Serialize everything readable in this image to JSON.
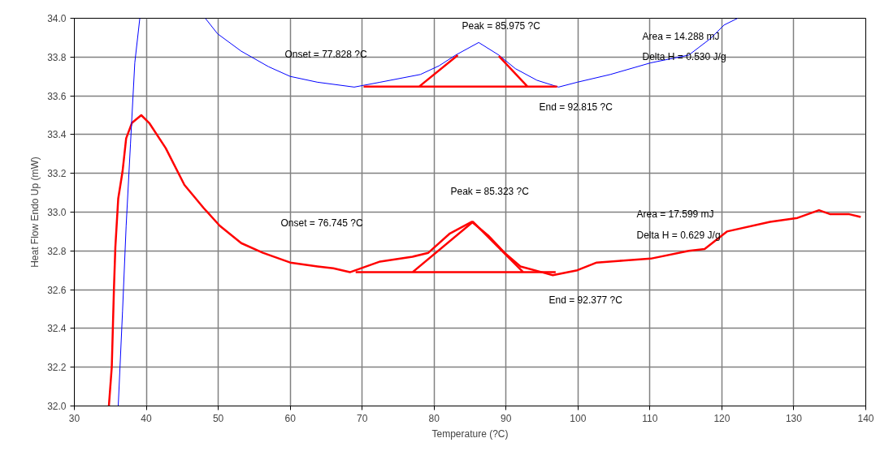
{
  "chart_data": {
    "type": "line",
    "xlabel": "Temperature (?C)",
    "ylabel": "Heat Flow Endo Up (mW)",
    "xlim": [
      30,
      140
    ],
    "ylim": [
      32.0,
      34.0
    ],
    "xticks": [
      30,
      40,
      50,
      60,
      70,
      80,
      90,
      100,
      110,
      120,
      130,
      140
    ],
    "yticks": [
      {
        "value": 32.0,
        "label": "32.0"
      },
      32.2,
      32.4,
      32.6,
      32.8,
      {
        "value": 33.0,
        "label": "33.0"
      },
      33.2,
      33.4,
      33.6,
      33.8,
      {
        "value": 34.0,
        "label": "34.0"
      }
    ],
    "grid": true,
    "marker": "none",
    "line_style": "solid",
    "series": [
      {
        "color": "#ff0000",
        "x": [
          34.8,
          35.2,
          35.5,
          35.7,
          36.1,
          36.7,
          37.2,
          38.0,
          39.3,
          40.4,
          42.7,
          45.3,
          48.0,
          50.2,
          53.2,
          56.2,
          60.0,
          63.8,
          66.0,
          68.3,
          72.5,
          77.0,
          79.2,
          82.2,
          85.25,
          87.5,
          89.8,
          92.0,
          95.0,
          96.5,
          99.9,
          102.6,
          106.3,
          110.1,
          115.4,
          117.6,
          120.7,
          126.7,
          130.5,
          133.5,
          135.0,
          137.6,
          139.3
        ],
        "values": [
          32.0,
          32.2,
          32.6,
          32.82,
          33.07,
          33.21,
          33.38,
          33.46,
          33.5,
          33.46,
          33.33,
          33.14,
          33.02,
          32.93,
          32.84,
          32.79,
          32.74,
          32.72,
          32.71,
          32.69,
          32.745,
          32.77,
          32.79,
          32.89,
          32.95,
          32.88,
          32.79,
          32.72,
          32.69,
          32.675,
          32.7,
          32.74,
          32.75,
          32.76,
          32.8,
          32.81,
          32.9,
          32.95,
          32.97,
          33.01,
          32.99,
          32.99,
          32.975
        ]
      },
      {
        "color": "#0000ff",
        "x": [
          36.1,
          36.7,
          37.2,
          37.8,
          38.4,
          39.1,
          43.0,
          48.2,
          49.9,
          53.2,
          57.0,
          60.0,
          63.8,
          68.9,
          72.5,
          78.1,
          80.7,
          83.0,
          86.2,
          89.0,
          91.3,
          94.3,
          97.3,
          99.9,
          104.5,
          110.1,
          115.4,
          118.4,
          120.3,
          122.2
        ],
        "values": [
          32.0,
          32.49,
          32.93,
          33.35,
          33.77,
          34.0,
          null,
          34.0,
          33.92,
          33.83,
          33.75,
          33.7,
          33.67,
          33.645,
          33.67,
          33.71,
          33.755,
          33.81,
          33.875,
          33.81,
          33.74,
          33.68,
          33.645,
          33.67,
          33.71,
          33.77,
          33.81,
          33.895,
          33.965,
          34.0
        ]
      },
      {
        "color": "#ff0000",
        "x": [
          70.2,
          97.1,
          null,
          77.9,
          83.3,
          null,
          89.0,
          93.0
        ],
        "values": [
          33.647,
          33.647,
          null,
          33.647,
          33.81,
          null,
          33.805,
          33.647
        ]
      },
      {
        "color": "#ff0000",
        "x": [
          69.1,
          96.9,
          null,
          77.0,
          85.4,
          92.4
        ],
        "values": [
          32.69,
          32.69,
          null,
          32.69,
          32.95,
          32.69
        ]
      }
    ],
    "annotations": [
      "Peak = 85.975 ?C",
      "Onset = 77.828 ?C",
      "End = 92.815 ?C",
      "Area = 14.288 mJ",
      "Delta H = 0.530 J/g",
      "Peak = 85.323 ?C",
      "Onset = 76.745 ?C",
      "End = 92.377 ?C",
      "Area = 17.599 mJ",
      "Delta H = 0.629 J/g"
    ]
  }
}
